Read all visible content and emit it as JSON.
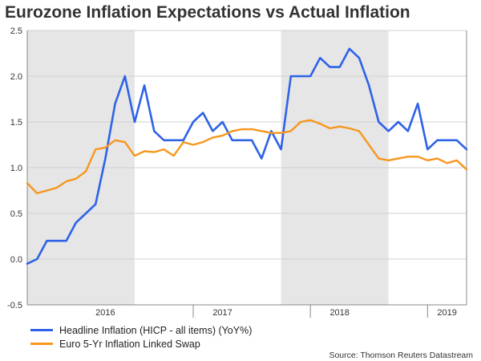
{
  "chart_data": {
    "type": "line",
    "title": "Eurozone Inflation Expectations vs Actual Inflation",
    "xlabel": "",
    "ylabel": "",
    "ylim": [
      -0.5,
      2.5
    ],
    "yticks": [
      "-0.5",
      "0.0",
      "0.5",
      "1.0",
      "1.5",
      "2.0",
      "2.5"
    ],
    "xlim": [
      "2015-08",
      "2019-05"
    ],
    "year_labels": [
      {
        "label": "2016",
        "x": "2016-04"
      },
      {
        "label": "2017",
        "x": "2017-04"
      },
      {
        "label": "2018",
        "x": "2018-04"
      },
      {
        "label": "2019",
        "x": "2019-03"
      }
    ],
    "year_dividers": [
      "2017-01",
      "2018-01",
      "2019-01"
    ],
    "shaded_periods": [
      [
        "2015-08",
        "2016-07"
      ],
      [
        "2017-10",
        "2018-09"
      ]
    ],
    "grid": "horizontal",
    "legend_position": "bottom-left",
    "series": [
      {
        "name": "Headline Inflation (HICP - all items) (YoY%)",
        "color": "#2e62e8",
        "x": [
          "2015-08",
          "2015-09",
          "2015-10",
          "2015-11",
          "2015-12",
          "2016-01",
          "2016-02",
          "2016-03",
          "2016-04",
          "2016-05",
          "2016-06",
          "2016-07",
          "2016-08",
          "2016-09",
          "2016-10",
          "2016-11",
          "2016-12",
          "2017-01",
          "2017-02",
          "2017-03",
          "2017-04",
          "2017-05",
          "2017-06",
          "2017-07",
          "2017-08",
          "2017-09",
          "2017-10",
          "2017-11",
          "2017-12",
          "2018-01",
          "2018-02",
          "2018-03",
          "2018-04",
          "2018-05",
          "2018-06",
          "2018-07",
          "2018-08",
          "2018-09",
          "2018-10",
          "2018-11",
          "2018-12",
          "2019-01",
          "2019-02",
          "2019-03",
          "2019-04",
          "2019-05"
        ],
        "values": [
          -0.05,
          0.0,
          0.2,
          0.2,
          0.2,
          0.4,
          0.5,
          0.6,
          1.1,
          1.7,
          2.0,
          1.5,
          1.9,
          1.4,
          1.3,
          1.3,
          1.3,
          1.5,
          1.6,
          1.4,
          1.5,
          1.3,
          1.3,
          1.3,
          1.1,
          1.4,
          1.2,
          2.0,
          2.0,
          2.0,
          2.2,
          2.1,
          2.1,
          2.3,
          2.2,
          1.9,
          1.5,
          1.4,
          1.5,
          1.4,
          1.7,
          1.2,
          1.3,
          1.3,
          1.3,
          1.2
        ]
      },
      {
        "name": "Euro 5-Yr Inflation Linked Swap",
        "color": "#f7961d",
        "x": [
          "2015-08",
          "2015-09",
          "2015-10",
          "2015-11",
          "2015-12",
          "2016-01",
          "2016-02",
          "2016-03",
          "2016-04",
          "2016-05",
          "2016-06",
          "2016-07",
          "2016-08",
          "2016-09",
          "2016-10",
          "2016-11",
          "2016-12",
          "2017-01",
          "2017-02",
          "2017-03",
          "2017-04",
          "2017-05",
          "2017-06",
          "2017-07",
          "2017-08",
          "2017-09",
          "2017-10",
          "2017-11",
          "2017-12",
          "2018-01",
          "2018-02",
          "2018-03",
          "2018-04",
          "2018-05",
          "2018-06",
          "2018-07",
          "2018-08",
          "2018-09",
          "2018-10",
          "2018-11",
          "2018-12",
          "2019-01",
          "2019-02",
          "2019-03",
          "2019-04",
          "2019-05"
        ],
        "values": [
          0.83,
          0.72,
          0.75,
          0.78,
          0.85,
          0.88,
          0.96,
          1.2,
          1.22,
          1.3,
          1.28,
          1.13,
          1.18,
          1.17,
          1.2,
          1.13,
          1.28,
          1.25,
          1.28,
          1.33,
          1.35,
          1.4,
          1.42,
          1.42,
          1.4,
          1.38,
          1.38,
          1.4,
          1.5,
          1.52,
          1.48,
          1.43,
          1.45,
          1.43,
          1.4,
          1.25,
          1.1,
          1.08,
          1.1,
          1.12,
          1.12,
          1.08,
          1.1,
          1.05,
          1.08,
          0.98
        ]
      }
    ],
    "source": "Source: Thomson Reuters Datastream"
  }
}
